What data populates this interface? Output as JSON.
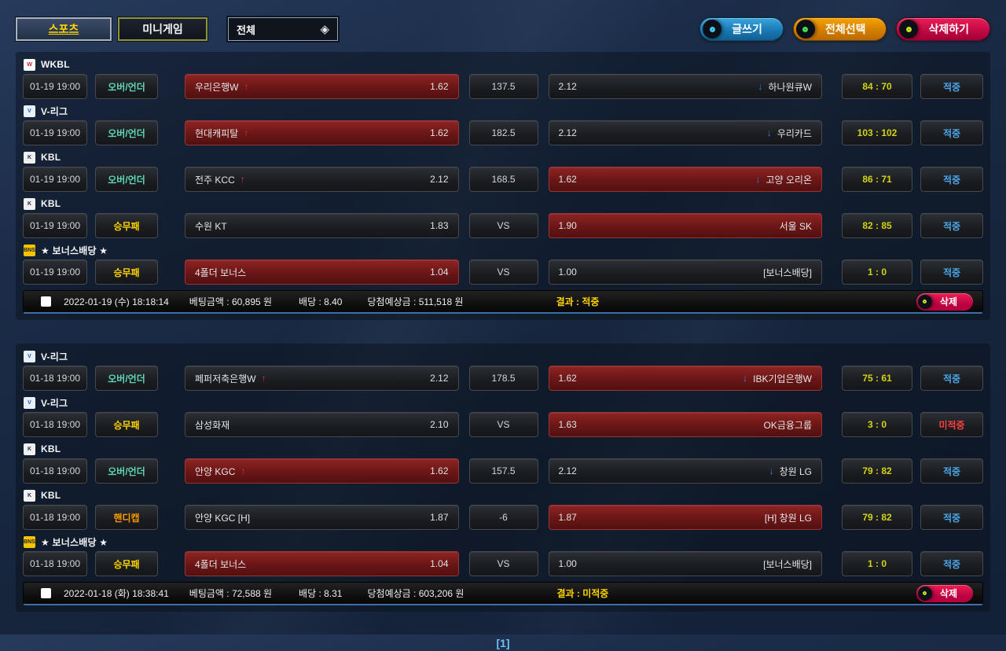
{
  "topbar": {
    "tab_sports": "스포츠",
    "tab_minigame": "미니게임",
    "filter_all": "전체",
    "write_button": "글쓰기",
    "select_all_button": "전체선택",
    "delete_all_button": "삭제하기"
  },
  "icons": {
    "diamond": "◈",
    "arrow_up": "↑",
    "arrow_down": "↓"
  },
  "pagination": {
    "current": "[1]"
  },
  "slips": [
    {
      "rows": [
        {
          "league": {
            "name": "WKBL",
            "icon": "W",
            "icon_bg": "#ffffff",
            "icon_color": "#c2203a"
          },
          "time": "01-19 19:00",
          "type": {
            "label": "오버/언더",
            "color": "#5fd6b8"
          },
          "home": {
            "name": "우리은행W",
            "arrow": "up",
            "odds": "1.62",
            "selected": true
          },
          "center": "137.5",
          "away": {
            "name": "하나원큐W",
            "arrow": "down",
            "odds": "2.12",
            "selected": false
          },
          "score": "84 : 70",
          "result": {
            "label": "적중",
            "color": "#4aa6e8"
          }
        },
        {
          "league": {
            "name": "V-리그",
            "icon": "V",
            "icon_bg": "#e9eff6",
            "icon_color": "#1a5fb0"
          },
          "time": "01-19 19:00",
          "type": {
            "label": "오버/언더",
            "color": "#5fd6b8"
          },
          "home": {
            "name": "현대캐피탈",
            "arrow": "up",
            "odds": "1.62",
            "selected": true
          },
          "center": "182.5",
          "away": {
            "name": "우리카드",
            "arrow": "down",
            "odds": "2.12",
            "selected": false
          },
          "score": "103 : 102",
          "result": {
            "label": "적중",
            "color": "#4aa6e8"
          }
        },
        {
          "league": {
            "name": "KBL",
            "icon": "K",
            "icon_bg": "#f0f0f0",
            "icon_color": "#1a2c50"
          },
          "time": "01-19 19:00",
          "type": {
            "label": "오버/언더",
            "color": "#5fd6b8"
          },
          "home": {
            "name": "전주 KCC",
            "arrow": "up",
            "odds": "2.12",
            "selected": false
          },
          "center": "168.5",
          "away": {
            "name": "고양 오리온",
            "arrow": "down",
            "odds": "1.62",
            "selected": true
          },
          "score": "86 : 71",
          "result": {
            "label": "적중",
            "color": "#4aa6e8"
          }
        },
        {
          "league": {
            "name": "KBL",
            "icon": "K",
            "icon_bg": "#f0f0f0",
            "icon_color": "#1a2c50"
          },
          "time": "01-19 19:00",
          "type": {
            "label": "승무패",
            "color": "#ffd400"
          },
          "home": {
            "name": "수원 KT",
            "arrow": "",
            "odds": "1.83",
            "selected": false
          },
          "center": "VS",
          "away": {
            "name": "서울 SK",
            "arrow": "",
            "odds": "1.90",
            "selected": true
          },
          "score": "82 : 85",
          "result": {
            "label": "적중",
            "color": "#4aa6e8"
          }
        },
        {
          "league": {
            "name": "★ 보너스배당 ★",
            "icon": "BNS",
            "icon_bg": "#f5c400",
            "icon_color": "#222222"
          },
          "time": "01-19 19:00",
          "type": {
            "label": "승무패",
            "color": "#ffd400"
          },
          "home": {
            "name": "4폴더 보너스",
            "arrow": "",
            "odds": "1.04",
            "selected": true
          },
          "center": "VS",
          "away": {
            "name": "[보너스배당]",
            "arrow": "",
            "odds": "1.00",
            "selected": false
          },
          "score": "1 : 0",
          "result": {
            "label": "적중",
            "color": "#4aa6e8"
          }
        }
      ],
      "footer": {
        "datetime": "2022-01-19 (수) 18:18:14",
        "bet_amount": "베팅금액 : 60,895 원",
        "odds": "배당 : 8.40",
        "expected": "당첨예상금 : 511,518 원",
        "result": "결과 : 적중",
        "delete_label": "삭제"
      }
    },
    {
      "rows": [
        {
          "league": {
            "name": "V-리그",
            "icon": "V",
            "icon_bg": "#e9eff6",
            "icon_color": "#1a5fb0"
          },
          "time": "01-18 19:00",
          "type": {
            "label": "오버/언더",
            "color": "#5fd6b8"
          },
          "home": {
            "name": "페퍼저축은행W",
            "arrow": "up",
            "odds": "2.12",
            "selected": false
          },
          "center": "178.5",
          "away": {
            "name": "IBK기업은행W",
            "arrow": "down",
            "odds": "1.62",
            "selected": true
          },
          "score": "75 : 61",
          "result": {
            "label": "적중",
            "color": "#4aa6e8"
          }
        },
        {
          "league": {
            "name": "V-리그",
            "icon": "V",
            "icon_bg": "#e9eff6",
            "icon_color": "#1a5fb0"
          },
          "time": "01-18 19:00",
          "type": {
            "label": "승무패",
            "color": "#ffd400"
          },
          "home": {
            "name": "삼성화재",
            "arrow": "",
            "odds": "2.10",
            "selected": false
          },
          "center": "VS",
          "away": {
            "name": "OK금융그룹",
            "arrow": "",
            "odds": "1.63",
            "selected": true
          },
          "score": "3 : 0",
          "result": {
            "label": "미적중",
            "color": "#ff4040"
          }
        },
        {
          "league": {
            "name": "KBL",
            "icon": "K",
            "icon_bg": "#f0f0f0",
            "icon_color": "#1a2c50"
          },
          "time": "01-18 19:00",
          "type": {
            "label": "오버/언더",
            "color": "#5fd6b8"
          },
          "home": {
            "name": "안양 KGC",
            "arrow": "up",
            "odds": "1.62",
            "selected": true
          },
          "center": "157.5",
          "away": {
            "name": "창원 LG",
            "arrow": "down",
            "odds": "2.12",
            "selected": false
          },
          "score": "79 : 82",
          "result": {
            "label": "적중",
            "color": "#4aa6e8"
          }
        },
        {
          "league": {
            "name": "KBL",
            "icon": "K",
            "icon_bg": "#f0f0f0",
            "icon_color": "#1a2c50"
          },
          "time": "01-18 19:00",
          "type": {
            "label": "핸디캡",
            "color": "#ff9a00"
          },
          "home": {
            "name": "안양 KGC [H]",
            "arrow": "",
            "odds": "1.87",
            "selected": false
          },
          "center": "-6",
          "away": {
            "name": "[H] 창원 LG",
            "arrow": "",
            "odds": "1.87",
            "selected": true
          },
          "score": "79 : 82",
          "result": {
            "label": "적중",
            "color": "#4aa6e8"
          }
        },
        {
          "league": {
            "name": "★ 보너스배당 ★",
            "icon": "BNS",
            "icon_bg": "#f5c400",
            "icon_color": "#222222"
          },
          "time": "01-18 19:00",
          "type": {
            "label": "승무패",
            "color": "#ffd400"
          },
          "home": {
            "name": "4폴더 보너스",
            "arrow": "",
            "odds": "1.04",
            "selected": true
          },
          "center": "VS",
          "away": {
            "name": "[보너스배당]",
            "arrow": "",
            "odds": "1.00",
            "selected": false
          },
          "score": "1 : 0",
          "result": {
            "label": "적중",
            "color": "#4aa6e8"
          }
        }
      ],
      "footer": {
        "datetime": "2022-01-18 (화) 18:38:41",
        "bet_amount": "베팅금액 : 72,588 원",
        "odds": "배당 : 8.31",
        "expected": "당첨예상금 : 603,206 원",
        "result": "결과 : 미적중",
        "delete_label": "삭제"
      }
    }
  ]
}
